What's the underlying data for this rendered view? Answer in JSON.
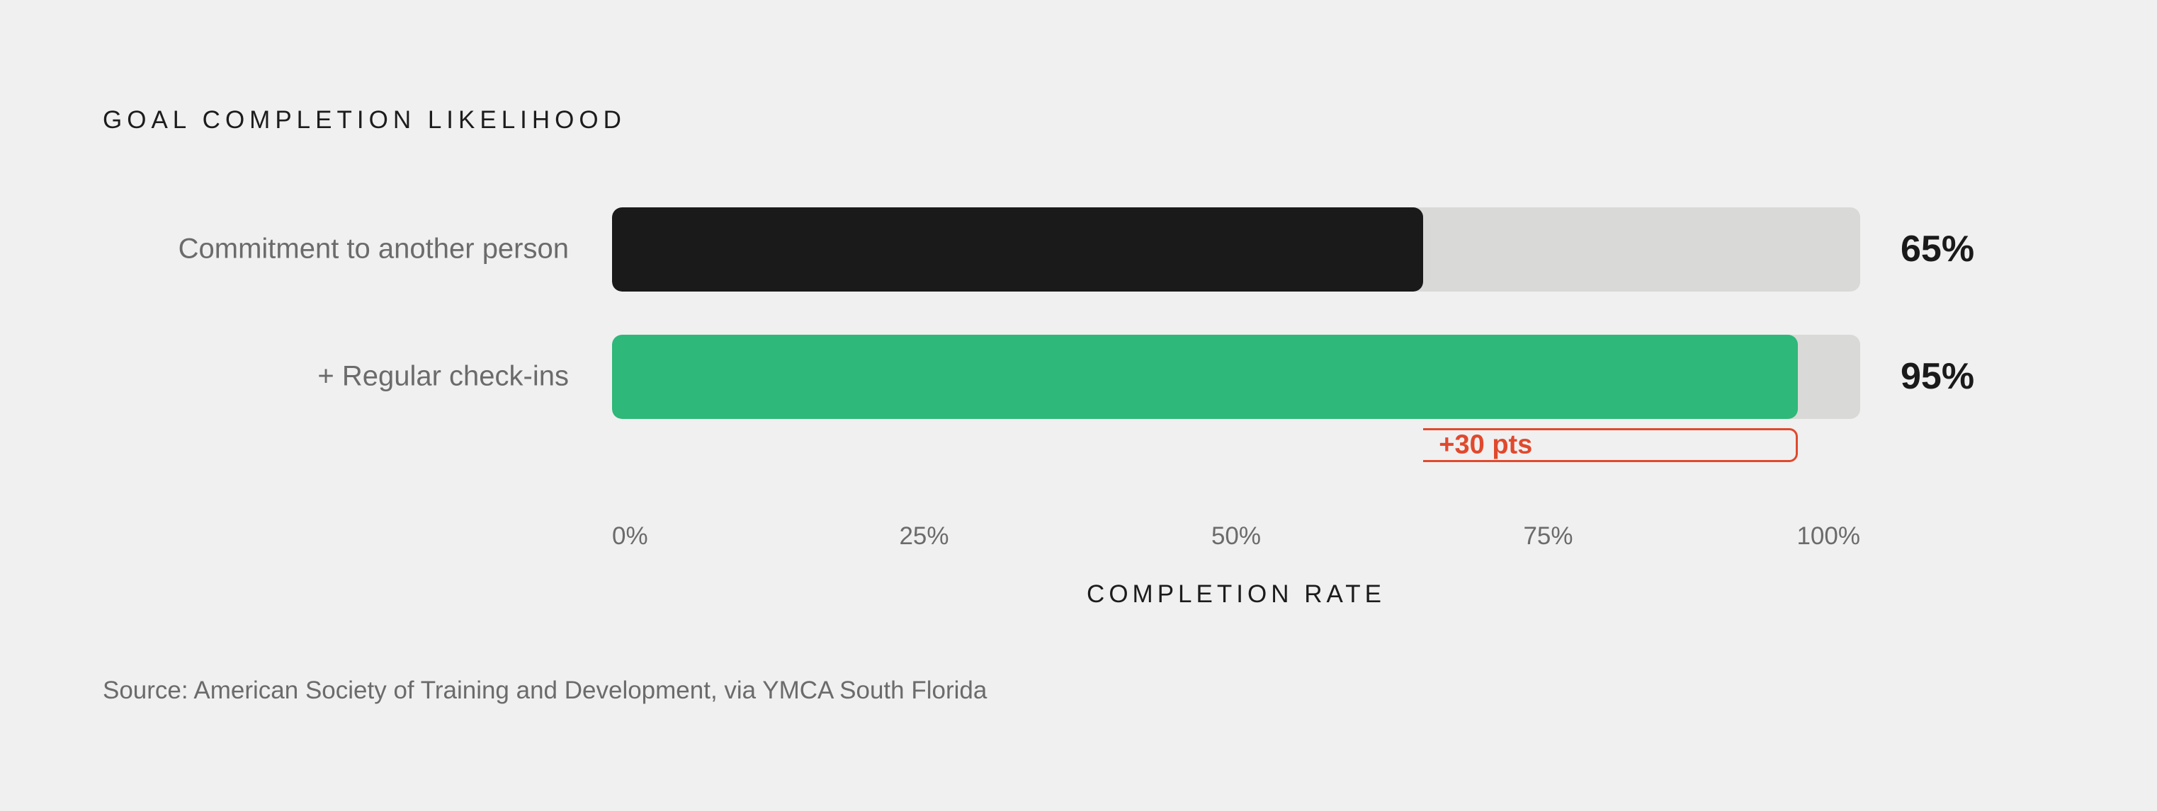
{
  "chart_data": {
    "type": "bar",
    "orientation": "horizontal",
    "title": "GOAL COMPLETION LIKELIHOOD",
    "categories": [
      "Commitment to another person",
      "+ Regular check-ins"
    ],
    "values": [
      65,
      95
    ],
    "value_labels": [
      "65%",
      "95%"
    ],
    "bar_colors": [
      "#1a1a1a",
      "#2eb87a"
    ],
    "track_color": "#d9d9d7",
    "xlim": [
      0,
      100
    ],
    "xticks": [
      "0%",
      "25%",
      "50%",
      "75%",
      "100%"
    ],
    "xlabel": "COMPLETION RATE",
    "grid": false,
    "annotation": {
      "text": "+30 pts",
      "from": 65,
      "to": 95,
      "color": "#e0492d"
    },
    "source": "Source: American Society of Training and Development, via YMCA South Florida"
  }
}
